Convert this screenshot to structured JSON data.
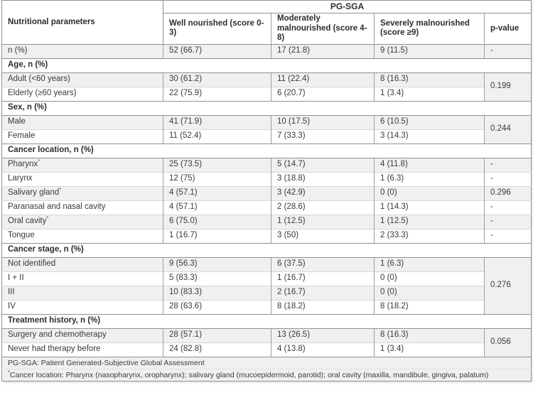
{
  "table": {
    "header": {
      "param_col": "Nutritional parameters",
      "group_label": "PG-SGA",
      "columns": [
        "Well nourished (score 0-3)",
        "Moderately malnourished (score 4-8)",
        "Severely malnourished (score ≥9)"
      ],
      "p_col": "p-value"
    },
    "rows": [
      {
        "type": "data",
        "shade": "gray",
        "label": "n (%)",
        "cells": [
          "52 (66.7)",
          "17 (21.8)",
          "9 (11.5)"
        ],
        "p": "-"
      },
      {
        "type": "section",
        "label": "Age, n (%)"
      },
      {
        "type": "data",
        "shade": "gray",
        "label": "Adult (<60 years)",
        "cells": [
          "30 (61.2)",
          "11 (22.4)",
          "8 (16.3)"
        ],
        "p": "0.199",
        "p_rowspan": 2
      },
      {
        "type": "data",
        "shade": "white",
        "label": "Elderly (≥60 years)",
        "cells": [
          "22 (75.9)",
          "6 (20.7)",
          "1 (3.4)"
        ]
      },
      {
        "type": "section",
        "label": "Sex, n (%)"
      },
      {
        "type": "data",
        "shade": "gray",
        "label": "Male",
        "cells": [
          "41 (71.9)",
          "10 (17.5)",
          "6 (10.5)"
        ],
        "p": "0.244",
        "p_rowspan": 2
      },
      {
        "type": "data",
        "shade": "white",
        "label": "Female",
        "cells": [
          "11 (52.4)",
          "7 (33.3)",
          "3 (14.3)"
        ]
      },
      {
        "type": "section",
        "label": "Cancer location, n (%)"
      },
      {
        "type": "data",
        "shade": "gray",
        "label": "Pharynx",
        "sup": "*",
        "cells": [
          "25 (73.5)",
          "5 (14.7)",
          "4 (11.8)"
        ],
        "p": "-"
      },
      {
        "type": "data",
        "shade": "white",
        "label": "Larynx",
        "cells": [
          "12 (75)",
          "3 (18.8)",
          "1 (6.3)"
        ],
        "p": "-"
      },
      {
        "type": "data",
        "shade": "gray",
        "label": "Salivary gland",
        "sup": "*",
        "cells": [
          "4 (57.1)",
          "3 (42.9)",
          "0 (0)"
        ],
        "p": "0.296"
      },
      {
        "type": "data",
        "shade": "white",
        "label": "Paranasal and nasal cavity",
        "cells": [
          "4 (57.1)",
          "2 (28.6)",
          "1 (14.3)"
        ],
        "p": "-"
      },
      {
        "type": "data",
        "shade": "gray",
        "label": "Oral cavity",
        "sup": "*",
        "cells": [
          "6 (75.0)",
          "1 (12.5)",
          "1 (12.5)"
        ],
        "p": "-"
      },
      {
        "type": "data",
        "shade": "white",
        "label": "Tongue",
        "cells": [
          "1 (16.7)",
          "3 (50)",
          "2 (33.3)"
        ],
        "p": "-"
      },
      {
        "type": "section",
        "label": "Cancer stage, n (%)"
      },
      {
        "type": "data",
        "shade": "gray",
        "label": "Not identified",
        "cells": [
          "9 (56.3)",
          "6 (37.5)",
          "1 (6.3)"
        ],
        "p": "0.276",
        "p_rowspan": 4
      },
      {
        "type": "data",
        "shade": "white",
        "label": "I + II",
        "cells": [
          "5 (83.3)",
          "1 (16.7)",
          "0 (0)"
        ]
      },
      {
        "type": "data",
        "shade": "gray",
        "label": "III",
        "cells": [
          "10 (83.3)",
          "2 (16.7)",
          "0 (0)"
        ]
      },
      {
        "type": "data",
        "shade": "white",
        "label": "IV",
        "cells": [
          "28 (63.6)",
          "8 (18.2)",
          "8 (18.2)"
        ]
      },
      {
        "type": "section",
        "label": "Treatment history, n (%)"
      },
      {
        "type": "data",
        "shade": "gray",
        "label": "Surgery and chemotherapy",
        "cells": [
          "28 (57.1)",
          "13 (26.5)",
          "8 (16.3)"
        ],
        "p": "0.056",
        "p_rowspan": 2
      },
      {
        "type": "data",
        "shade": "white",
        "label": "Never had therapy before",
        "cells": [
          "24 (82.8)",
          "4 (13.8)",
          "1 (3.4)"
        ]
      }
    ],
    "footnotes": {
      "line1": "PG-SGA: Patient Generated-Subjective Global Assessment",
      "marker": "*",
      "line2": "Cancer location: Pharynx (nasopharynx, oropharynx); salivary gland (mucoepidermoid, parotid); oral cavity (maxilla, mandibule, gingiva, palatum)"
    },
    "colors": {
      "row_shade": "#f0f0f1",
      "border_dark": "#909090",
      "border_light": "#d7d7d7",
      "text": "#3a3a3a"
    }
  }
}
